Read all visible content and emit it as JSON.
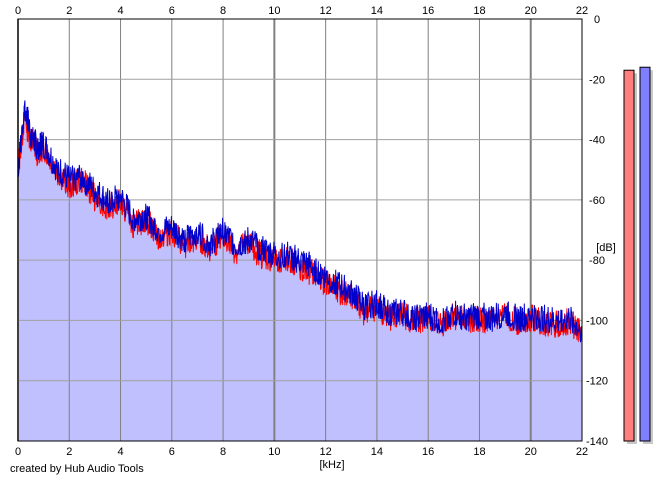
{
  "footer": "created by Hub Audio Tools",
  "chart_data": {
    "type": "area",
    "xlabel": "[kHz]",
    "ylabel": "[dB]",
    "xlim": [
      0,
      22
    ],
    "ylim": [
      -140,
      0
    ],
    "x_ticks": [
      0,
      2,
      4,
      6,
      8,
      10,
      12,
      14,
      16,
      18,
      20,
      22
    ],
    "y_ticks": [
      0,
      -20,
      -40,
      -60,
      -80,
      -100,
      -120,
      -140
    ],
    "grid": true,
    "fill_color": "#c0c0ff",
    "series": [
      {
        "color": "#ff0000",
        "x": [
          0,
          0.25,
          0.5,
          0.75,
          1,
          1.5,
          2,
          2.5,
          3,
          3.5,
          4,
          4.5,
          5,
          5.5,
          6,
          6.5,
          7,
          7.5,
          8,
          8.5,
          9,
          9.5,
          10,
          10.5,
          11,
          11.5,
          12,
          12.5,
          13,
          13.5,
          14,
          14.5,
          15,
          15.5,
          16,
          16.5,
          17,
          17.5,
          18,
          18.5,
          19,
          19.5,
          20,
          20.5,
          21,
          21.5,
          22
        ],
        "values": [
          -50,
          -32,
          -40,
          -44,
          -42,
          -50,
          -55,
          -53,
          -59,
          -62,
          -60,
          -68,
          -66,
          -72,
          -70,
          -75,
          -72,
          -76,
          -71,
          -77,
          -74,
          -78,
          -80,
          -79,
          -82,
          -84,
          -87,
          -90,
          -92,
          -97,
          -95,
          -99,
          -98,
          -100,
          -99,
          -101,
          -98,
          -100,
          -99,
          -100,
          -98,
          -100,
          -99,
          -100,
          -101,
          -100,
          -104
        ]
      },
      {
        "color": "#0000cc",
        "x": [
          0,
          0.25,
          0.5,
          0.75,
          1,
          1.5,
          2,
          2.5,
          3,
          3.5,
          4,
          4.5,
          5,
          5.5,
          6,
          6.5,
          7,
          7.5,
          8,
          8.5,
          9,
          9.5,
          10,
          10.5,
          11,
          11.5,
          12,
          12.5,
          13,
          13.5,
          14,
          14.5,
          15,
          15.5,
          16,
          16.5,
          17,
          17.5,
          18,
          18.5,
          19,
          19.5,
          20,
          20.5,
          21,
          21.5,
          22
        ],
        "values": [
          -50,
          -28,
          -38,
          -42,
          -41,
          -49,
          -53,
          -52,
          -57,
          -60,
          -59,
          -66,
          -65,
          -70,
          -69,
          -73,
          -70,
          -74,
          -70,
          -75,
          -73,
          -76,
          -78,
          -78,
          -80,
          -82,
          -85,
          -88,
          -90,
          -95,
          -94,
          -97,
          -97,
          -99,
          -98,
          -100,
          -97,
          -99,
          -98,
          -99,
          -97,
          -99,
          -98,
          -99,
          -100,
          -99,
          -103
        ]
      }
    ],
    "level_meters": [
      {
        "color": "#ff7f7f",
        "value": -17
      },
      {
        "color": "#7f7fff",
        "value": -16
      }
    ]
  }
}
